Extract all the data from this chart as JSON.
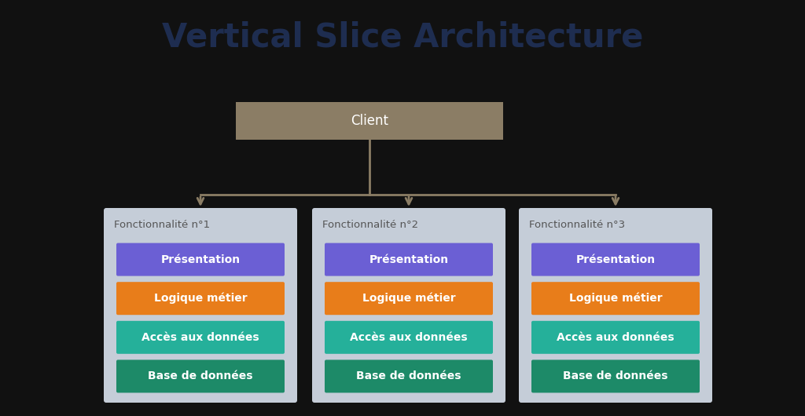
{
  "title": "Vertical Slice Architecture",
  "title_color": "#1e2d50",
  "title_fontsize": 30,
  "title_fontweight": "bold",
  "background_color": "#0a0a0a",
  "outer_bg_color": "#111111",
  "client_label": "Client",
  "client_box_color": "#8b7d65",
  "client_text_color": "#ffffff",
  "client_text_fontsize": 12,
  "arrow_color": "#8b7d65",
  "arrow_lw": 2.0,
  "slice_bg_color": "#c5cdd8",
  "slice_title_color": "#555555",
  "slice_title_fontsize": 9.5,
  "slices": [
    {
      "title": "Fonctionnalité n°1"
    },
    {
      "title": "Fonctionnalité n°2"
    },
    {
      "title": "Fonctionnalité n°3"
    }
  ],
  "layers": [
    {
      "label": "Présentation",
      "color": "#6b5fd4",
      "text_color": "#ffffff"
    },
    {
      "label": "Logique métier",
      "color": "#e87d1a",
      "text_color": "#ffffff"
    },
    {
      "label": "Accès aux données",
      "color": "#25b09a",
      "text_color": "#ffffff"
    },
    {
      "label": "Base de données",
      "color": "#1d8a68",
      "text_color": "#ffffff"
    }
  ],
  "layer_fontsize": 10,
  "layer_fontweight": "bold"
}
